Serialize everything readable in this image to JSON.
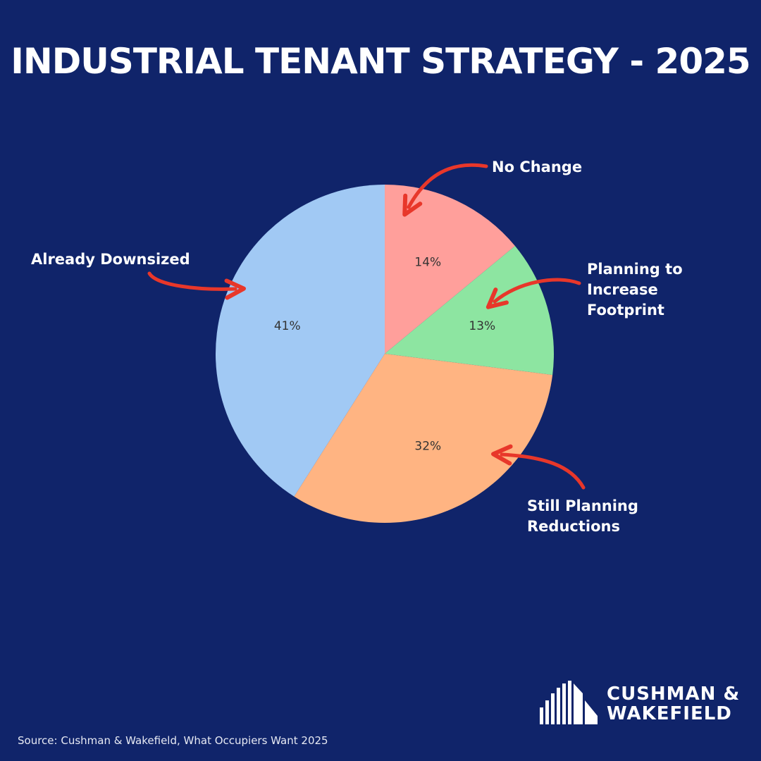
{
  "title": "INDUSTRIAL TENANT STRATEGY - 2025",
  "source": "Source: Cushman & Wakefield, What Occupiers Want 2025",
  "logo": {
    "line1": "CUSHMAN &",
    "line2": "WAKEFIELD"
  },
  "colors": {
    "background": "#10246a",
    "arrow": "#e8372a",
    "slices": [
      "#ff9f9b",
      "#8de5a1",
      "#ffb482",
      "#a1c9f4"
    ]
  },
  "callouts": {
    "no_change": "No Change",
    "increase": [
      "Planning to",
      "Increase",
      "Footprint"
    ],
    "reductions": [
      "Still Planning",
      "Reductions"
    ],
    "downsized": "Already Downsized"
  },
  "chart_data": {
    "type": "pie",
    "start_angle_deg": 90,
    "direction": "clockwise",
    "slices": [
      {
        "label": "No Change",
        "value": 14,
        "value_label": "14%"
      },
      {
        "label": "Planning to Increase Footprint",
        "value": 13,
        "value_label": "13%"
      },
      {
        "label": "Still Planning Reductions",
        "value": 32,
        "value_label": "32%"
      },
      {
        "label": "Already Downsized",
        "value": 41,
        "value_label": "41%"
      }
    ]
  }
}
